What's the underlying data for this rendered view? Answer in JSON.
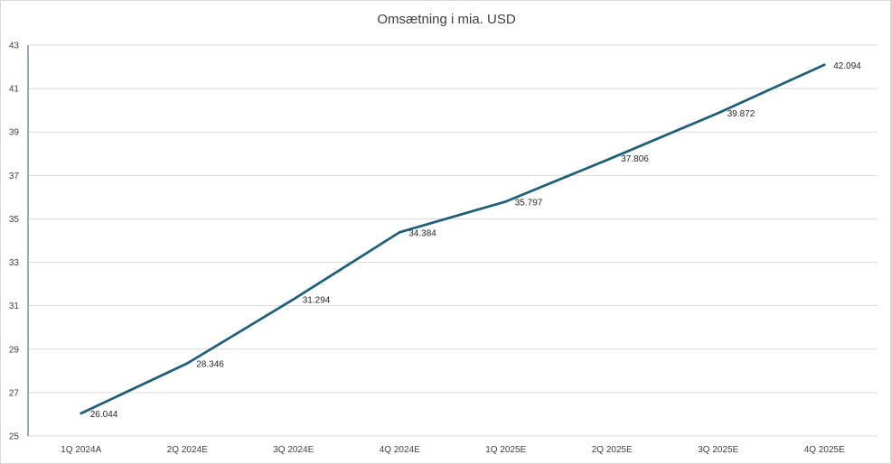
{
  "chart_data": {
    "type": "line",
    "title": "Omsætning i mia. USD",
    "xlabel": "",
    "ylabel": "",
    "categories": [
      "1Q 2024A",
      "2Q 2024E",
      "3Q 2024E",
      "4Q 2024E",
      "1Q 2025E",
      "2Q 2025E",
      "3Q 2025E",
      "4Q 2025E"
    ],
    "series": [
      {
        "values": [
          26.044,
          28.346,
          31.294,
          34.384,
          35.797,
          37.806,
          39.872,
          42.094
        ],
        "labels": [
          "26.044",
          "28.346",
          "31.294",
          "34.384",
          "35.797",
          "37.806",
          "39.872",
          "42.094"
        ],
        "color": "#1f5f7a"
      }
    ],
    "ylim": [
      25,
      43
    ],
    "yticks": [
      "25",
      "27",
      "29",
      "31",
      "33",
      "35",
      "37",
      "39",
      "41",
      "43"
    ],
    "grid": true,
    "gridColor": "#d9d9d9",
    "legend": "none"
  }
}
